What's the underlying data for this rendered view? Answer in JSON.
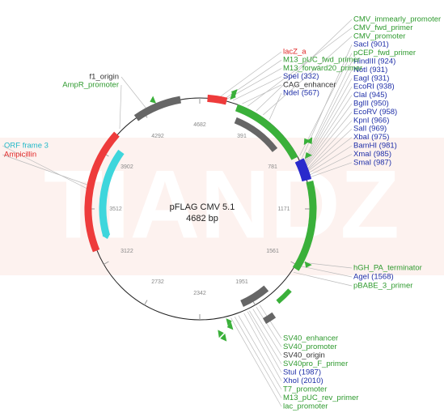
{
  "watermark": "TIANDZ",
  "plasmid": {
    "name": "pFLAG CMV 5.1",
    "size": "4682 bp"
  },
  "ticks": [
    "4682",
    "391",
    "781",
    "1171",
    "1561",
    "1951",
    "2342",
    "2732",
    "3122",
    "3512",
    "3902",
    "4292"
  ],
  "colors": {
    "green": "#2e9a2e",
    "blue": "#1f2fa8",
    "red": "#e02626",
    "black": "#333333",
    "cyan": "#20b8c8"
  },
  "labels": {
    "top_right": [
      {
        "text": "CMV_immearly_promoter",
        "color": "green"
      },
      {
        "text": "CMV_fwd_primer",
        "color": "green"
      },
      {
        "text": "CMV_promoter",
        "color": "green"
      },
      {
        "text": "SacI (901)",
        "color": "blue"
      },
      {
        "text": "pCEP_fwd_primer",
        "color": "green"
      },
      {
        "text": "HindIII (924)",
        "color": "blue"
      },
      {
        "text": "NotI (931)",
        "color": "blue"
      },
      {
        "text": "EagI (931)",
        "color": "blue"
      },
      {
        "text": "EcoRI (938)",
        "color": "blue"
      },
      {
        "text": "ClaI (945)",
        "color": "blue"
      },
      {
        "text": "BglII (950)",
        "color": "blue"
      },
      {
        "text": "EcoRV (958)",
        "color": "blue"
      },
      {
        "text": "KpnI (966)",
        "color": "blue"
      },
      {
        "text": "SalI (969)",
        "color": "blue"
      },
      {
        "text": "XbaI (975)",
        "color": "blue"
      },
      {
        "text": "BamHI (981)",
        "color": "blue"
      },
      {
        "text": "XmaI (985)",
        "color": "blue"
      },
      {
        "text": "SmaI (987)",
        "color": "blue"
      }
    ],
    "top_middle": [
      {
        "text": "lacZ_a",
        "color": "red"
      },
      {
        "text": "M13_pUC_fwd_primer",
        "color": "green"
      },
      {
        "text": "M13_forward20_primer",
        "color": "green"
      },
      {
        "text": "SpeI (332)",
        "color": "blue"
      },
      {
        "text": "CAG_enhancer",
        "color": "black"
      },
      {
        "text": "NdeI (567)",
        "color": "blue"
      }
    ],
    "top_left": [
      {
        "text": "f1_origin",
        "color": "black"
      },
      {
        "text": "AmpR_promoter",
        "color": "green"
      }
    ],
    "left": [
      {
        "text": "ORF frame 3",
        "color": "cyan"
      },
      {
        "text": "Ampicillin",
        "color": "red"
      }
    ],
    "bottom_right": [
      {
        "text": "hGH_PA_terminator",
        "color": "green"
      },
      {
        "text": "AgeI (1568)",
        "color": "blue"
      },
      {
        "text": "pBABE_3_primer",
        "color": "green"
      }
    ],
    "bottom": [
      {
        "text": "SV40_enhancer",
        "color": "green"
      },
      {
        "text": "SV40_promoter",
        "color": "green"
      },
      {
        "text": "SV40_origin",
        "color": "black"
      },
      {
        "text": "SV40pro_F_primer",
        "color": "green"
      },
      {
        "text": "StuI (1987)",
        "color": "blue"
      },
      {
        "text": "XhoI (2010)",
        "color": "blue"
      },
      {
        "text": "T7_promoter",
        "color": "green"
      },
      {
        "text": "M13_pUC_rev_primer",
        "color": "green"
      },
      {
        "text": "lac_promoter",
        "color": "green"
      }
    ]
  }
}
